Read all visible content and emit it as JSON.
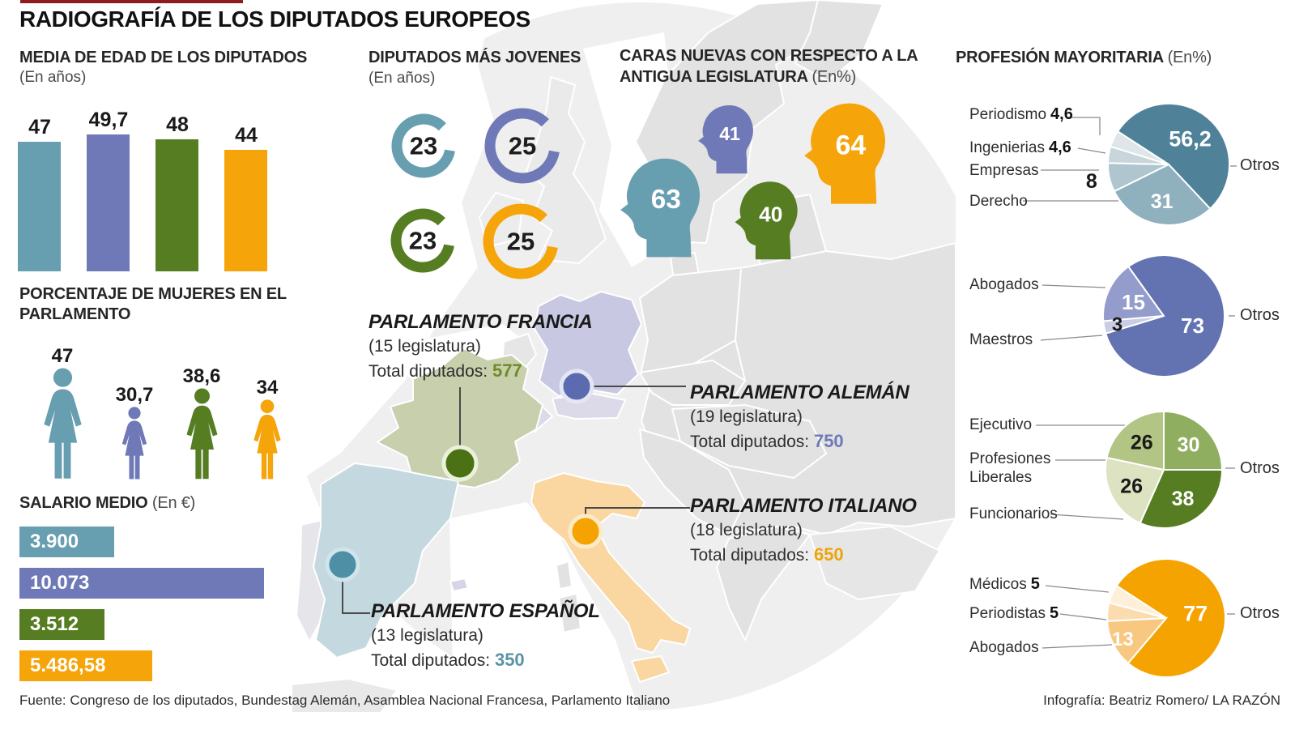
{
  "title": "RADIOGRAFÍA DE LOS DIPUTADOS EUROPEOS",
  "palette": {
    "spain": "#679EB0",
    "germany": "#6F79B7",
    "france": "#567D22",
    "italy": "#F5A40A",
    "accent_strip": "#8E1B22"
  },
  "chart_data": [
    {
      "id": "edad",
      "type": "bar",
      "title": "MEDIA DE EDAD DE LOS DIPUTADOS",
      "unit": "(En años)",
      "categories": [
        "España",
        "Alemania",
        "Francia",
        "Italia"
      ],
      "values": [
        47,
        49.7,
        48,
        44
      ],
      "value_labels": [
        "47",
        "49,7",
        "48",
        "44"
      ],
      "colors": [
        "#679EB0",
        "#6F79B7",
        "#567D22",
        "#F5A40A"
      ],
      "ylim": [
        0,
        55
      ]
    },
    {
      "id": "mujeres",
      "type": "pictogram-female",
      "title": "PORCENTAJE DE MUJERES EN EL PARLAMENTO",
      "title_lines": [
        "PORCENTAJE DE MUJERES EN EL",
        "PARLAMENTO"
      ],
      "categories": [
        "España",
        "Alemania",
        "Francia",
        "Italia"
      ],
      "values": [
        47,
        30.7,
        38.6,
        34
      ],
      "value_labels": [
        "47",
        "30,7",
        "38,6",
        "34"
      ],
      "colors": [
        "#679EB0",
        "#6F79B7",
        "#567D22",
        "#F5A40A"
      ]
    },
    {
      "id": "salario",
      "type": "bar-horizontal",
      "title": "SALARIO MEDIO",
      "unit": "(En €)",
      "categories": [
        "España",
        "Alemania",
        "Francia",
        "Italia"
      ],
      "values": [
        3900,
        10073,
        3512,
        5486.58
      ],
      "value_labels": [
        "3.900",
        "10.073",
        "3.512",
        "5.486,58"
      ],
      "colors": [
        "#679EB0",
        "#6F79B7",
        "#567D22",
        "#F5A40A"
      ]
    },
    {
      "id": "jovenes",
      "type": "ring",
      "title": "DIPUTADOS MÁS JOVENES",
      "unit": "(En años)",
      "categories": [
        "España",
        "Alemania",
        "Francia",
        "Italia"
      ],
      "values": [
        23,
        25,
        23,
        25
      ],
      "value_labels": [
        "23",
        "25",
        "23",
        "25"
      ],
      "colors": [
        "#679EB0",
        "#6F79B7",
        "#567D22",
        "#F5A40A"
      ]
    },
    {
      "id": "caras_nuevas",
      "type": "pictogram-heads",
      "title": "CARAS NUEVAS CON RESPECTO A LA ANTIGUA LEGISLATURA",
      "unit": "(En%)",
      "title_lines": [
        "CARAS NUEVAS CON RESPECTO A LA",
        "ANTIGUA LEGISLATURA"
      ],
      "categories": [
        "Alemania",
        "España",
        "Francia",
        "Italia"
      ],
      "values": [
        41,
        63,
        40,
        64
      ],
      "value_labels": [
        "41",
        "63",
        "40",
        "64"
      ],
      "colors": [
        "#6F79B7",
        "#679EB0",
        "#567D22",
        "#F5A40A"
      ]
    },
    {
      "id": "profesiones",
      "type": "pie",
      "title": "PROFESIÓN MAYORITARIA",
      "unit": "(En%)",
      "pies": [
        {
          "country": "España",
          "start_angle": -57,
          "slices": [
            {
              "label": "Otros",
              "value": 56.2,
              "display": "56,2",
              "color": "#4F8299",
              "inside": true,
              "text": "#ffffff",
              "lr": 0.55,
              "fs": 27
            },
            {
              "label": "Derecho",
              "value": 31,
              "display": "31",
              "color": "#8FB0BD",
              "inside": true,
              "text": "#ffffff",
              "lr": 0.62,
              "fs": 25
            },
            {
              "label": "Empresas",
              "value": 8,
              "display": "8",
              "color": "#AFC6CE",
              "inside": true,
              "text": "#1a1a1a",
              "lr": 1.3,
              "fs": 25
            },
            {
              "label": "Ingenierias",
              "value": 4.6,
              "display": "4,6",
              "color": "#C8D6DB",
              "inside": false
            },
            {
              "label": "Periodismo",
              "value": 4.6,
              "display": "4,6",
              "color": "#DEE6E9",
              "inside": false
            }
          ]
        },
        {
          "country": "Alemania",
          "start_angle": -95,
          "slices": [
            {
              "label": "Abogados",
              "value": 15,
              "display": "15",
              "color": "#939CCB",
              "inside": true,
              "text": "#ffffff",
              "lr": 0.55,
              "fs": 26
            },
            {
              "label": "Otros",
              "value": 73,
              "display": "73",
              "color": "#6372B1",
              "inside": true,
              "text": "#ffffff",
              "lr": 0.5,
              "fs": 26
            },
            {
              "label": "Maestros",
              "value": 3,
              "display": "3",
              "color": "#C9CDE5",
              "inside": true,
              "text": "#1a1a1a",
              "lr": 0.78,
              "fs": 24
            }
          ]
        },
        {
          "country": "Francia",
          "start_angle": 0,
          "slices": [
            {
              "label": "Otros",
              "value": 30,
              "display": "30",
              "color": "#8FAE60",
              "inside": true,
              "text": "#ffffff",
              "lr": 0.6,
              "fs": 25
            },
            {
              "label": "Funcionarios",
              "value": 38,
              "display": "38",
              "color": "#567D22",
              "inside": true,
              "text": "#ffffff",
              "lr": 0.6,
              "fs": 25
            },
            {
              "label": "Profesiones Liberales",
              "value": 26,
              "display": "26",
              "color": "#DDE2C0",
              "inside": true,
              "text": "#1a1a1a",
              "lr": 0.62,
              "fs": 25
            },
            {
              "label": "Ejecutivo",
              "value": 26,
              "display": "26",
              "color": "#B2C585",
              "inside": true,
              "text": "#1a1a1a",
              "lr": 0.6,
              "fs": 25
            }
          ]
        },
        {
          "country": "Italia",
          "start_angle": -57,
          "slices": [
            {
              "label": "Otros",
              "value": 77,
              "display": "77",
              "color": "#F5A300",
              "inside": true,
              "text": "#ffffff",
              "lr": 0.5,
              "fs": 27
            },
            {
              "label": "Abogados",
              "value": 13,
              "display": "13",
              "color": "#F8C780",
              "inside": true,
              "text": "#ffffff",
              "lr": 0.82,
              "fs": 24
            },
            {
              "label": "Periodistas",
              "value": 5,
              "display": "5",
              "color": "#FBDCAE",
              "inside": false
            },
            {
              "label": "Médicos",
              "value": 5,
              "display": "5",
              "color": "#FDEFD8",
              "inside": false
            }
          ]
        }
      ]
    }
  ],
  "map": {
    "parliaments": [
      {
        "name": "PARLAMENTO FRANCIA",
        "legislature": "(15 legislatura)",
        "total_label": "Total diputados:",
        "total": "577",
        "color": "#6D8C28"
      },
      {
        "name": "PARLAMENTO ALEMÁN",
        "legislature": "(19 legislatura)",
        "total_label": "Total diputados:",
        "total": "750",
        "color": "#6F79B7"
      },
      {
        "name": "PARLAMENTO ITALIANO",
        "legislature": "(18 legislatura)",
        "total_label": "Total diputados:",
        "total": "650",
        "color": "#EDA50C"
      },
      {
        "name": "PARLAMENTO ESPAÑOL",
        "legislature": "(13 legislatura)",
        "total_label": "Total diputados:",
        "total": "350",
        "color": "#5A93A6"
      }
    ]
  },
  "footer": {
    "source": "Fuente: Congreso de los diputados, Bundestag Alemán, Asamblea Nacional Francesa, Parlamento Italiano",
    "credit": "Infografía: Beatriz Romero/ LA RAZÓN"
  }
}
